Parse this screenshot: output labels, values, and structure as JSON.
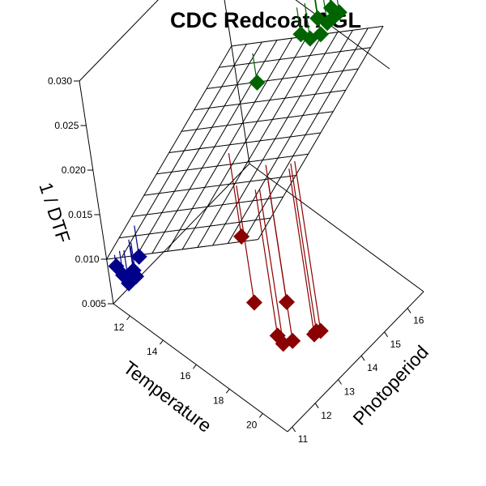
{
  "chart_data": {
    "type": "scatter3d",
    "title": "CDC Redcoat AGL",
    "xlabel": "Temperature",
    "ylabel": "Photoperiod",
    "zlabel": "1 / DTF",
    "x_ticks": [
      "12",
      "14",
      "16",
      "18",
      "20"
    ],
    "y_ticks": [
      "11",
      "12",
      "13",
      "14",
      "15",
      "16"
    ],
    "z_ticks": [
      "0.005",
      "0.010",
      "0.015",
      "0.020",
      "0.025",
      "0.030"
    ],
    "xlim": [
      11,
      21.5
    ],
    "ylim": [
      10.8,
      16.7
    ],
    "zlim": [
      0.005,
      0.03
    ],
    "fitted_plane": {
      "intercept": -0.0224,
      "temperature_coef": 0.00158,
      "photoperiod_coef": 0.00139
    },
    "grid": true,
    "series": [
      {
        "color": "#00008B",
        "points": [
          {
            "x": 11.4,
            "y": 10.9,
            "z": 0.0095
          },
          {
            "x": 11.6,
            "y": 11.0,
            "z": 0.0085
          },
          {
            "x": 11.9,
            "y": 11.0,
            "z": 0.008
          },
          {
            "x": 11.8,
            "y": 11.3,
            "z": 0.0085
          },
          {
            "x": 12.2,
            "y": 11.1,
            "z": 0.009
          },
          {
            "x": 12.1,
            "y": 11.2,
            "z": 0.0085
          },
          {
            "x": 11.6,
            "y": 11.7,
            "z": 0.0087
          }
        ]
      },
      {
        "color": "#8B0000",
        "points": [
          {
            "x": 15.5,
            "y": 13.5,
            "z": 0.0115
          },
          {
            "x": 17.5,
            "y": 12.5,
            "z": 0.0095
          },
          {
            "x": 19.1,
            "y": 12.3,
            "z": 0.0085
          },
          {
            "x": 19.4,
            "y": 12.3,
            "z": 0.008
          },
          {
            "x": 19.7,
            "y": 12.5,
            "z": 0.0082
          },
          {
            "x": 18.8,
            "y": 13.0,
            "z": 0.01
          },
          {
            "x": 20.8,
            "y": 13.0,
            "z": 0.0095
          },
          {
            "x": 20.7,
            "y": 12.8,
            "z": 0.0095
          },
          {
            "x": 20.6,
            "y": 12.95,
            "z": 0.0093
          }
        ]
      },
      {
        "color": "#006400",
        "points": [
          {
            "x": 12.9,
            "y": 16.4,
            "z": 0.0175
          },
          {
            "x": 14.2,
            "y": 17.6,
            "z": 0.0215
          },
          {
            "x": 14.6,
            "y": 17.7,
            "z": 0.0213
          },
          {
            "x": 14.6,
            "y": 18.1,
            "z": 0.0225
          },
          {
            "x": 15.0,
            "y": 17.9,
            "z": 0.0218
          },
          {
            "x": 15.2,
            "y": 18.1,
            "z": 0.0228
          },
          {
            "x": 15.3,
            "y": 18.3,
            "z": 0.023
          },
          {
            "x": 14.9,
            "y": 18.5,
            "z": 0.023
          },
          {
            "x": 15.4,
            "y": 18.5,
            "z": 0.0232
          }
        ]
      }
    ]
  }
}
